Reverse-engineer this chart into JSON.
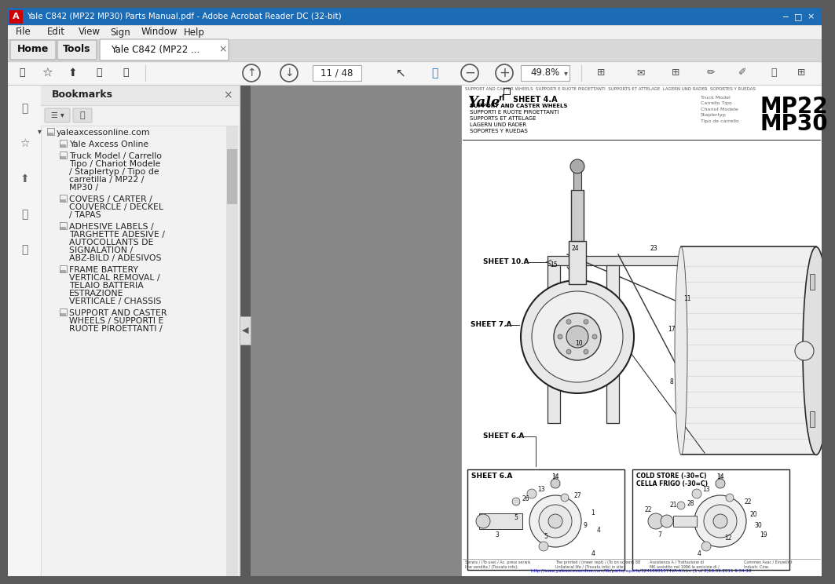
{
  "title_bar": "Yale C842 (MP22 MP30) Parts Manual.pdf - Adobe Acrobat Reader DC (32-bit)",
  "title_bar_bg": "#1c6bb5",
  "title_bar_fg": "#ffffff",
  "menu_items": [
    "File",
    "Edit",
    "View",
    "Sign",
    "Window",
    "Help"
  ],
  "tab_home": "Home",
  "tab_tools": "Tools",
  "tab_doc": "Yale C842 (MP22 ...",
  "page_num": "11 / 48",
  "zoom_pct": "49.8%",
  "left_panel_title": "Bookmarks",
  "sheet_label": "SHEET 4.A",
  "sheet_title_lines": [
    "SUPPORT AND CASTER WHEELS",
    "SUPPORTI E RUOTE PIROETTANTI",
    "SUPPORTS ET ATTELAGE",
    "LAGERN UND RADER",
    "SOPORTES Y RUEDAS"
  ],
  "model_label_small": "Truck Model\nCarrello Tipo\nChariot Modele\nStaplertyp\nTipo de carrello",
  "model_mp22": "MP22",
  "model_mp30": "MP30",
  "sheet_10a": "SHEET 10.A",
  "sheet_7a": "SHEET 7.A",
  "sheet_6a": "SHEET 6.A",
  "cold_store_label": "COLD STORE (-30=C)\nCELLA FRIGO (-30=C)",
  "footer_url": "http://www.yaleaxcessonline.com/lib/parts/reports/52410931374VA-A.htm (1 of 2)16.09.2011 9:54:18",
  "bm_entries": [
    {
      "indent": 0,
      "text": "yaleaxcessonline.com"
    },
    {
      "indent": 1,
      "text": "Yale Axcess Online"
    },
    {
      "indent": 1,
      "text": "Truck Model / Carrello\nTipo / Chariot Modele\n/ Staplertyp / Tipo de\ncarretilla / MP22 /\nMP30 /"
    },
    {
      "indent": 1,
      "text": "COVERS / CARTER /\nCOUVERCLE / DECKEL\n/ TAPAS"
    },
    {
      "indent": 1,
      "text": "ADHESIVE LABELS /\nTARGHETTE ADESIVE /\nAUTOCOLLANTS DE\nSIGNALATION /\nABZ-BILD / ADESIVOS"
    },
    {
      "indent": 1,
      "text": "FRAME BATTERY\nVERTICAL REMOVAL /\nTELAIO BATTERIA\nESTRAZIONE\nVERTICALE / CHASSIS"
    },
    {
      "indent": 1,
      "text": "SUPPORT AND CASTER\nWHEELS / SUPPORTI E\nRUOTE PIROETTANTI /"
    }
  ]
}
